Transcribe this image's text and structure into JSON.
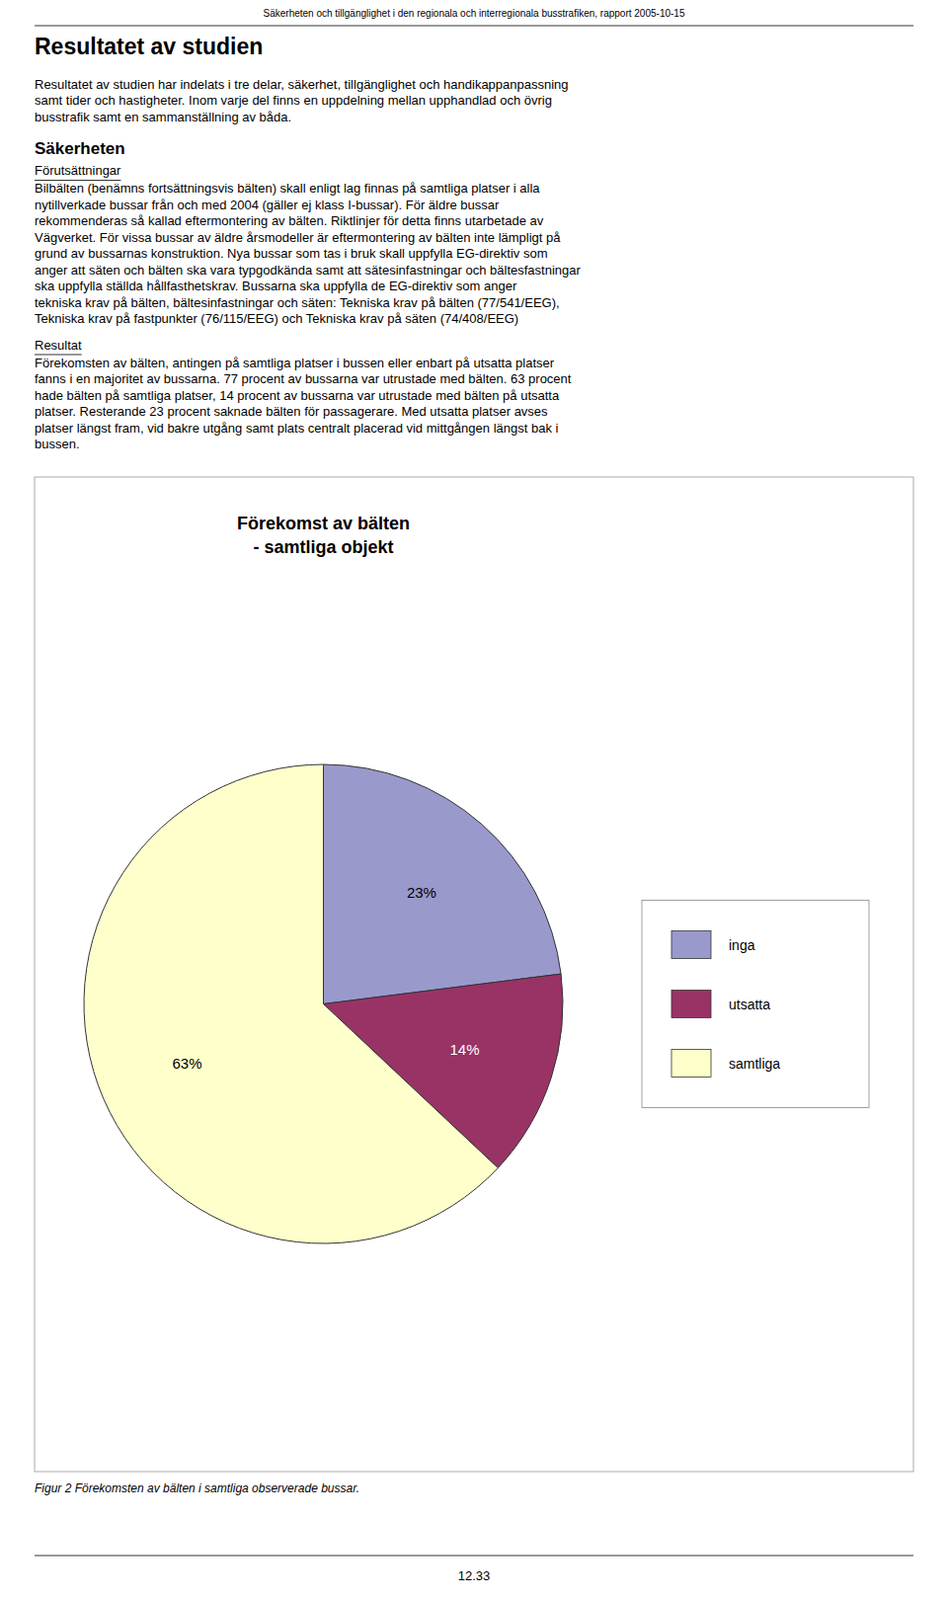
{
  "page": {
    "header": "Säkerheten och tillgänglighet i den regionala och interregionala busstrafiken, rapport 2005-10-15",
    "title": "Resultatet av studien",
    "section_title": "Säkerheten",
    "subsection_1": "Förutsättningar",
    "subsection_2": "Resultat",
    "body1": [
      "Resultatet av studien har indelats i tre delar, säkerhet, tillgänglighet och handikappanpassning",
      "samt tider och hastigheter. Inom varje del finns en uppdelning mellan upphandlad och övrig",
      "busstrafik samt en sammanställning av båda."
    ],
    "body2": [
      "Bilbälten (benämns fortsättningsvis bälten) skall enligt lag finnas på samtliga platser i alla",
      "nytillverkade bussar från och med 2004  (gäller ej klass I-bussar). För äldre bussar",
      "rekommenderas så kallad eftermontering av bälten. Riktlinjer för detta finns utarbetade av",
      "Vägverket. För vissa bussar av äldre årsmodeller är eftermontering av bälten inte lämpligt på",
      "grund av bussarnas konstruktion. Nya bussar som tas i bruk skall uppfylla EG-direktiv som",
      "anger att säten och bälten ska vara typgodkända samt att sätesinfastningar och bältesfastningar",
      "ska uppfylla ställda hållfasthetskrav. Bussarna ska uppfylla de EG-direktiv som anger",
      "tekniska krav på bälten, bältesinfastningar och säten: Tekniska krav på bälten (77/541/EEG),",
      "Tekniska krav på fastpunkter (76/115/EEG) och Tekniska krav på säten (74/408/EEG)"
    ],
    "body3": [
      "Förekomsten av bälten, antingen på samtliga platser i bussen eller enbart på utsatta platser",
      "fanns i en majoritet av bussarna. 77 procent av bussarna var utrustade med bälten. 63 procent",
      "hade bälten på samtliga platser, 14 procent av bussarna var utrustade med bälten på utsatta",
      "platser. Resterande 23 procent saknade bälten för passagerare. Med utsatta platser avses",
      "platser längst fram, vid bakre utgång samt plats centralt placerad vid mittgången längst bak i",
      "bussen."
    ],
    "caption": "Figur 2 Förekomsten av bälten i samtliga observerade bussar.",
    "page_number": "12.33"
  },
  "chart_data": {
    "type": "pie",
    "title": "Förekomst av bälten",
    "subtitle": "- samtliga objekt",
    "categories": [
      "inga",
      "utsatta",
      "samtliga"
    ],
    "values": [
      23,
      14,
      63
    ],
    "value_labels": [
      "23%",
      "14%",
      "63%"
    ],
    "colors": [
      "#9999cc",
      "#993366",
      "#ffffcc"
    ],
    "data_labels": true,
    "legend": "right"
  }
}
